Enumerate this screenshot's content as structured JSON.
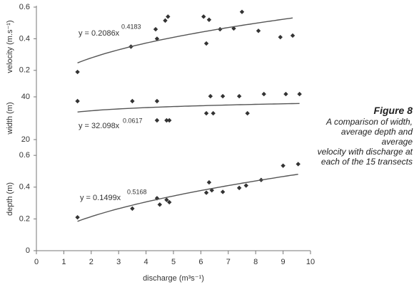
{
  "chart_data": [
    {
      "type": "scatter",
      "ylabel": "velocity (m.s⁻¹)",
      "color": "#333333",
      "x": [
        1.5,
        3.45,
        4.35,
        4.4,
        4.7,
        4.8,
        6.1,
        6.2,
        6.3,
        6.7,
        7.2,
        7.5,
        8.1,
        8.9,
        9.35
      ],
      "values": [
        0.19,
        0.35,
        0.46,
        0.4,
        0.515,
        0.54,
        0.54,
        0.37,
        0.52,
        0.46,
        0.465,
        0.57,
        0.45,
        0.41,
        0.42
      ],
      "ylim": [
        0.1,
        0.6
      ],
      "yticks": [
        0.2,
        0.4,
        0.6
      ],
      "fit": {
        "label": "y = 0.2086x",
        "coefficient": 0.2086,
        "exponent": 0.4183
      }
    },
    {
      "type": "scatter",
      "ylabel": "width (m)",
      "color": "#333333",
      "x": [
        1.5,
        3.5,
        4.4,
        4.4,
        4.75,
        4.85,
        6.2,
        6.35,
        6.45,
        6.8,
        7.4,
        7.7,
        8.3,
        9.1,
        9.6
      ],
      "values": [
        38,
        38,
        38,
        29,
        29,
        29,
        32.3,
        40.3,
        32.3,
        40.3,
        40.3,
        32.3,
        41.3,
        41.3,
        41.3
      ],
      "ylim": [
        15,
        45
      ],
      "yticks": [
        20,
        40
      ],
      "fit": {
        "label": "y = 32.098x",
        "coefficient": 32.098,
        "exponent": 0.0617
      }
    },
    {
      "type": "scatter",
      "ylabel": "depth (m)",
      "xlabel": "discharge (m³s⁻¹)",
      "color": "#333333",
      "x": [
        1.5,
        3.5,
        4.4,
        4.5,
        4.75,
        4.85,
        6.2,
        6.3,
        6.4,
        6.8,
        7.4,
        7.65,
        8.2,
        9.0,
        9.55
      ],
      "values": [
        0.21,
        0.265,
        0.33,
        0.29,
        0.32,
        0.305,
        0.365,
        0.43,
        0.38,
        0.37,
        0.395,
        0.41,
        0.445,
        0.535,
        0.545
      ],
      "ylim": [
        0,
        0.65
      ],
      "yticks": [
        0,
        0.2,
        0.4,
        0.6
      ],
      "xlim": [
        0,
        10
      ],
      "xticks": [
        0,
        1,
        2,
        3,
        4,
        5,
        6,
        7,
        8,
        9,
        10
      ],
      "fit": {
        "label": "y = 0.1499x",
        "coefficient": 0.1499,
        "exponent": 0.5168
      }
    }
  ],
  "caption": {
    "title": "Figure 8",
    "text_lines": [
      "A comparison of width,",
      "average depth and average",
      "velocity with discharge at",
      "each of the 15 transects"
    ]
  }
}
